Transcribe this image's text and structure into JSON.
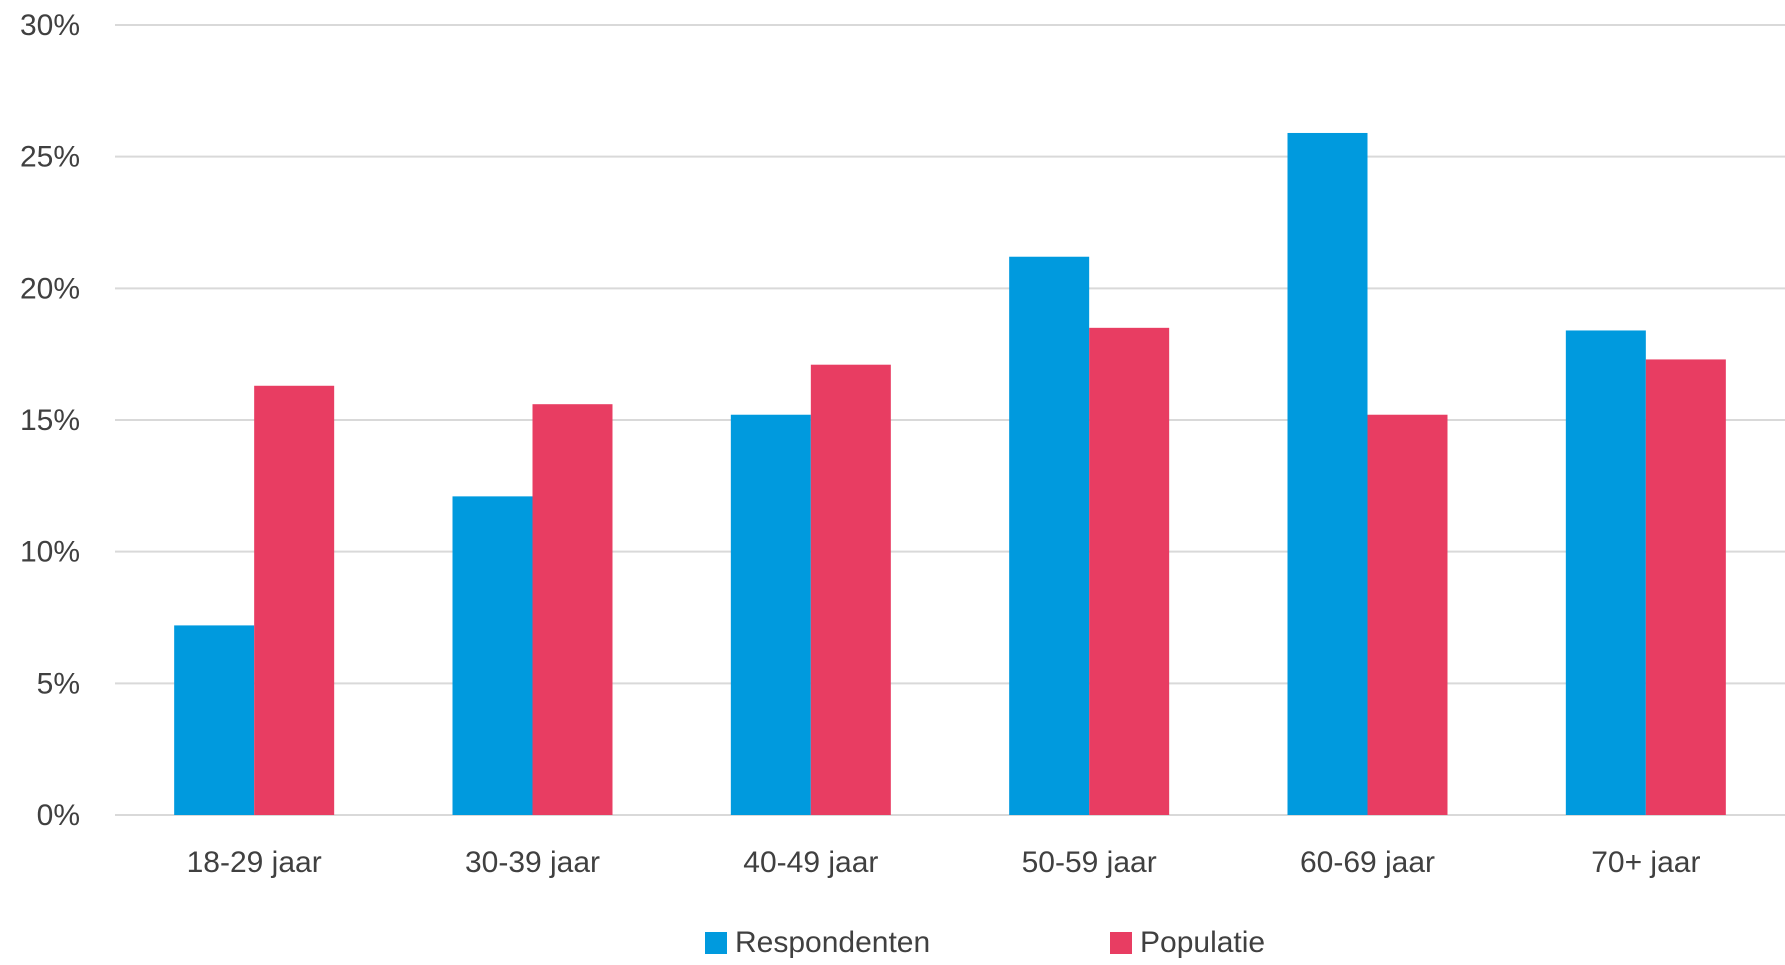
{
  "chart_data": {
    "type": "bar",
    "title": "",
    "xlabel": "",
    "ylabel": "",
    "categories": [
      "18-29 jaar",
      "30-39 jaar",
      "40-49 jaar",
      "50-59 jaar",
      "60-69 jaar",
      "70+ jaar"
    ],
    "series": [
      {
        "name": "Respondenten",
        "color": "#009ADE",
        "values": [
          7.2,
          12.1,
          15.2,
          21.2,
          25.9,
          18.4
        ]
      },
      {
        "name": "Populatie",
        "color": "#E83D62",
        "values": [
          16.3,
          15.6,
          17.1,
          18.5,
          15.2,
          17.3
        ]
      }
    ],
    "ylim": [
      0,
      30
    ],
    "yticks": [
      "0%",
      "5%",
      "10%",
      "15%",
      "20%",
      "25%",
      "30%"
    ],
    "grid": true,
    "legend": "bottom"
  }
}
